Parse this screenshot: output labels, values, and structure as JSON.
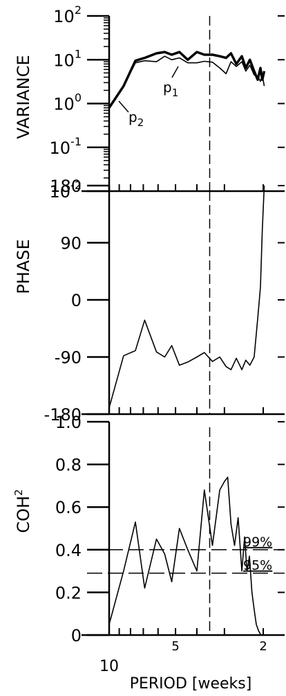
{
  "chart_data": [
    {
      "type": "line",
      "ylabel": "VARIANCE",
      "yscale": "log",
      "ylim": [
        0.01,
        100
      ],
      "ytick_labels": [
        {
          "base": "10",
          "exp": "2"
        },
        {
          "base": "10",
          "exp": "1"
        },
        {
          "base": "10",
          "exp": "0"
        },
        {
          "base": "10",
          "exp": "-1"
        },
        {
          "base": "10",
          "exp": "-2"
        }
      ],
      "series": [
        {
          "name": "p1",
          "label_base": "p",
          "label_sub": "1",
          "x": [
            10,
            8.6,
            7.6,
            6.9,
            6.1,
            5.6,
            5.2,
            4.8,
            4.4,
            4.0,
            3.7,
            3.4,
            3.15,
            2.95,
            2.8,
            2.65,
            2.5,
            2.4,
            2.3,
            2.2,
            2.12,
            2.06,
            2.02,
            1.98
          ],
          "y": [
            0.8,
            2.5,
            8.5,
            9.5,
            9.0,
            12,
            10,
            11,
            8.5,
            8.5,
            9.2,
            8.8,
            6.5,
            4.8,
            9.0,
            7.0,
            9.0,
            5.5,
            7.5,
            4.5,
            4.2,
            3.2,
            4.5,
            2.5
          ]
        },
        {
          "name": "p2",
          "label_base": "p",
          "label_sub": "2",
          "x": [
            10,
            8.6,
            7.6,
            6.9,
            6.1,
            5.6,
            5.2,
            4.8,
            4.4,
            4.0,
            3.7,
            3.4,
            3.15,
            2.95,
            2.8,
            2.65,
            2.5,
            2.4,
            2.3,
            2.2,
            2.12,
            2.06,
            2.02,
            1.98
          ],
          "y": [
            0.8,
            2.5,
            9.5,
            11,
            14,
            15,
            13,
            15,
            10,
            15,
            13,
            13,
            12,
            11,
            14,
            8.0,
            12,
            6.5,
            10,
            5.5,
            3.5,
            6.5,
            3.5,
            5.5
          ]
        }
      ]
    },
    {
      "type": "line",
      "ylabel": "PHASE",
      "ylim": [
        -180,
        180
      ],
      "yticks": [
        "180",
        "90",
        "0",
        "-90",
        "-180"
      ],
      "series": [
        {
          "x": [
            10,
            8.6,
            7.6,
            6.9,
            6.1,
            5.6,
            5.2,
            4.8,
            4.4,
            4.0,
            3.7,
            3.4,
            3.15,
            2.95,
            2.8,
            2.65,
            2.5,
            2.4,
            2.3,
            2.2,
            2.12,
            2.06,
            2.02,
            1.98
          ],
          "y": [
            -170,
            -88,
            -80,
            -32,
            -82,
            -90,
            -72,
            -103,
            -98,
            -90,
            -83,
            -97,
            -90,
            -105,
            -110,
            -92,
            -110,
            -95,
            -103,
            -90,
            -30,
            20,
            110,
            180
          ]
        }
      ]
    },
    {
      "type": "line",
      "ylabel_base": "COH",
      "ylabel_exp": "2",
      "ylim": [
        0,
        1.0
      ],
      "yticks": [
        "1.0",
        "0.8",
        "0.6",
        "0.4",
        "0.2",
        "0"
      ],
      "xlabel": "PERIOD [weeks]",
      "xticks": [
        "10",
        "5",
        "2"
      ],
      "series": [
        {
          "x": [
            10,
            8.6,
            7.6,
            6.9,
            6.1,
            5.6,
            5.2,
            4.8,
            4.4,
            4.0,
            3.7,
            3.4,
            3.15,
            3.0,
            2.9,
            2.8,
            2.7,
            2.6,
            2.5,
            2.43,
            2.37,
            2.31,
            2.25,
            2.2,
            2.15,
            2.1,
            2.05,
            2.0
          ],
          "y": [
            0.05,
            0.3,
            0.53,
            0.22,
            0.45,
            0.38,
            0.25,
            0.5,
            0.4,
            0.3,
            0.68,
            0.42,
            0.68,
            0.72,
            0.74,
            0.52,
            0.42,
            0.55,
            0.3,
            0.46,
            0.3,
            0.37,
            0.2,
            0.12,
            0.05,
            0.02,
            0.0,
            0.0
          ]
        }
      ],
      "reference_lines": [
        {
          "y": 0.4,
          "label": "99%"
        },
        {
          "y": 0.29,
          "label": "95%"
        }
      ]
    }
  ],
  "vertical_marker_period": 3.5
}
